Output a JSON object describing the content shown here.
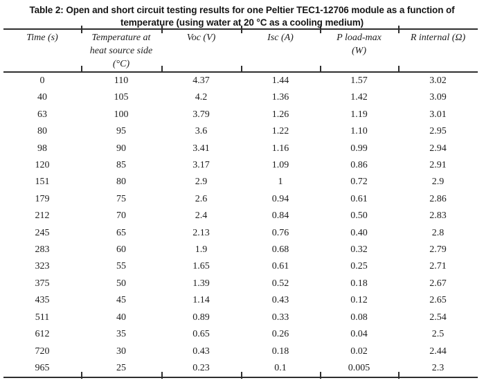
{
  "caption": {
    "full_text": "Table 2: Open and short circuit testing results for one Peltier TEC1-12706 module as a function of temperature (using water at 20 °C as a cooling medium)",
    "lines": [
      "Table 2: Open and short circuit testing results for one Peltier TEC1-12706 module as a function of",
      "temperature (using water at 20 °C as a cooling medium)"
    ]
  },
  "table": {
    "columns": [
      {
        "label": "Time (s)",
        "lines": [
          "Time (s)"
        ]
      },
      {
        "label": "Temperature at heat source side (°C)",
        "lines": [
          "Temperature at",
          "heat source side",
          "(°C)"
        ]
      },
      {
        "label": "Voc (V)",
        "lines": [
          "Voc (V)"
        ]
      },
      {
        "label": "Isc (A)",
        "lines": [
          "Isc (A)"
        ]
      },
      {
        "label": "P load-max (W)",
        "lines": [
          "P load-max",
          "(W)"
        ]
      },
      {
        "label": "R internal (Ω)",
        "lines": [
          "R internal (Ω)"
        ]
      }
    ],
    "rows": [
      [
        "0",
        "110",
        "4.37",
        "1.44",
        "1.57",
        "3.02"
      ],
      [
        "40",
        "105",
        "4.2",
        "1.36",
        "1.42",
        "3.09"
      ],
      [
        "63",
        "100",
        "3.79",
        "1.26",
        "1.19",
        "3.01"
      ],
      [
        "80",
        "95",
        "3.6",
        "1.22",
        "1.10",
        "2.95"
      ],
      [
        "98",
        "90",
        "3.41",
        "1.16",
        "0.99",
        "2.94"
      ],
      [
        "120",
        "85",
        "3.17",
        "1.09",
        "0.86",
        "2.91"
      ],
      [
        "151",
        "80",
        "2.9",
        "1",
        "0.72",
        "2.9"
      ],
      [
        "179",
        "75",
        "2.6",
        "0.94",
        "0.61",
        "2.86"
      ],
      [
        "212",
        "70",
        "2.4",
        "0.84",
        "0.50",
        "2.83"
      ],
      [
        "245",
        "65",
        "2.13",
        "0.76",
        "0.40",
        "2.8"
      ],
      [
        "283",
        "60",
        "1.9",
        "0.68",
        "0.32",
        "2.79"
      ],
      [
        "323",
        "55",
        "1.65",
        "0.61",
        "0.25",
        "2.71"
      ],
      [
        "375",
        "50",
        "1.39",
        "0.52",
        "0.18",
        "2.67"
      ],
      [
        "435",
        "45",
        "1.14",
        "0.43",
        "0.12",
        "2.65"
      ],
      [
        "511",
        "40",
        "0.89",
        "0.33",
        "0.08",
        "2.54"
      ],
      [
        "612",
        "35",
        "0.65",
        "0.26",
        "0.04",
        "2.5"
      ],
      [
        "720",
        "30",
        "0.43",
        "0.18",
        "0.02",
        "2.44"
      ],
      [
        "965",
        "25",
        "0.23",
        "0.1",
        "0.005",
        "2.3"
      ]
    ]
  },
  "colors": {
    "background": "#ffffff",
    "text": "#1c1c1c",
    "rule": "#2e2e2e"
  }
}
